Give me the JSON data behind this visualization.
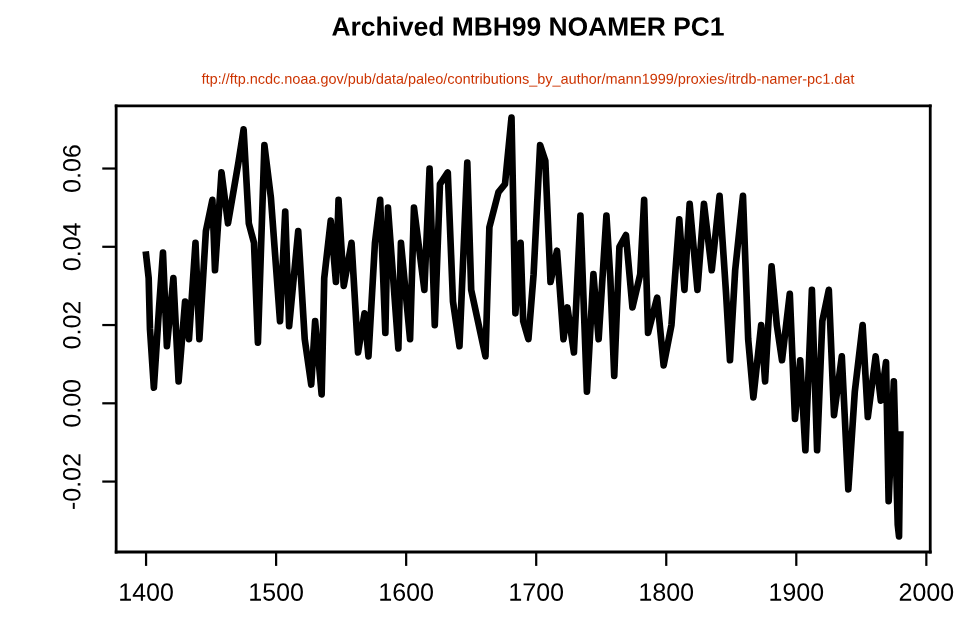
{
  "chart_data": {
    "type": "line",
    "title": "Archived MBH99 NOAMER PC1",
    "subtitle": "ftp://ftp.ncdc.noaa.gov/pub/data/paleo/contributions_by_author/mann1999/proxies/itrdb-namer-pc1.dat",
    "x": [
      1400,
      1402,
      1403,
      1406,
      1410,
      1413,
      1416,
      1421,
      1425,
      1430,
      1433,
      1438,
      1441,
      1446,
      1451,
      1453,
      1458,
      1463,
      1471,
      1475,
      1479,
      1483,
      1486,
      1491,
      1496,
      1503,
      1507,
      1510,
      1517,
      1522,
      1527,
      1530,
      1535,
      1537,
      1542,
      1546,
      1548,
      1552,
      1558,
      1563,
      1568,
      1571,
      1576,
      1580,
      1584,
      1586,
      1594,
      1596,
      1603,
      1606,
      1614,
      1618,
      1622,
      1626,
      1632,
      1636,
      1641,
      1647,
      1650,
      1661,
      1664,
      1671,
      1676,
      1681,
      1684,
      1688,
      1690,
      1694,
      1698,
      1703,
      1707,
      1711,
      1716,
      1721,
      1724,
      1729,
      1734,
      1739,
      1744,
      1748,
      1754,
      1757,
      1760,
      1764,
      1769,
      1774,
      1780,
      1783,
      1786,
      1793,
      1798,
      1804,
      1810,
      1814,
      1818,
      1824,
      1829,
      1835,
      1841,
      1846,
      1849,
      1853,
      1859,
      1863,
      1867,
      1873,
      1876,
      1881,
      1885,
      1889,
      1895,
      1899,
      1903,
      1907,
      1912,
      1916,
      1920,
      1925,
      1929,
      1935,
      1940,
      1945,
      1951,
      1955,
      1961,
      1965,
      1969,
      1971,
      1975,
      1978,
      1979,
      1980
    ],
    "series": [
      {
        "color": "#000000",
        "values": [
          0.038,
          0.032,
          0.019,
          0.004,
          0.0245,
          0.0385,
          0.0146,
          0.032,
          0.0056,
          0.026,
          0.0164,
          0.041,
          0.0164,
          0.044,
          0.052,
          0.034,
          0.059,
          0.046,
          0.0615,
          0.07,
          0.046,
          0.041,
          0.0155,
          0.066,
          0.0525,
          0.021,
          0.049,
          0.0197,
          0.044,
          0.0164,
          0.0048,
          0.021,
          0.0023,
          0.032,
          0.0467,
          0.031,
          0.052,
          0.03,
          0.041,
          0.013,
          0.023,
          0.012,
          0.041,
          0.052,
          0.018,
          0.05,
          0.014,
          0.041,
          0.0164,
          0.05,
          0.029,
          0.06,
          0.02,
          0.056,
          0.059,
          0.026,
          0.0146,
          0.0615,
          0.029,
          0.012,
          0.045,
          0.054,
          0.056,
          0.073,
          0.023,
          0.041,
          0.021,
          0.0164,
          0.033,
          0.066,
          0.062,
          0.031,
          0.039,
          0.0164,
          0.0245,
          0.013,
          0.048,
          0.003,
          0.033,
          0.0164,
          0.048,
          0.032,
          0.007,
          0.04,
          0.043,
          0.0245,
          0.033,
          0.052,
          0.018,
          0.027,
          0.0097,
          0.02,
          0.047,
          0.029,
          0.051,
          0.029,
          0.051,
          0.034,
          0.053,
          0.028,
          0.011,
          0.034,
          0.053,
          0.0164,
          0.0015,
          0.02,
          0.0056,
          0.035,
          0.02,
          0.011,
          0.028,
          -0.004,
          0.011,
          -0.012,
          0.029,
          -0.012,
          0.021,
          0.029,
          -0.003,
          0.012,
          -0.022,
          0.003,
          0.02,
          -0.0035,
          0.012,
          0.0007,
          0.0105,
          -0.025,
          0.0056,
          -0.031,
          -0.034,
          -0.008
        ]
      }
    ],
    "xlim": [
      1377,
      2003
    ],
    "ylim": [
      -0.038,
      0.076
    ],
    "xticks": [
      1400,
      1500,
      1600,
      1700,
      1800,
      1900,
      2000
    ],
    "yticks": [
      {
        "value": -0.02,
        "label": "-0.02"
      },
      {
        "value": 0,
        "label": "0.00"
      },
      {
        "value": 0.02,
        "label": "0.02"
      },
      {
        "value": 0.04,
        "label": "0.04"
      },
      {
        "value": 0.06,
        "label": "0.06"
      }
    ],
    "grid": false,
    "legend": false,
    "marker": "none",
    "line_style": "solid"
  }
}
